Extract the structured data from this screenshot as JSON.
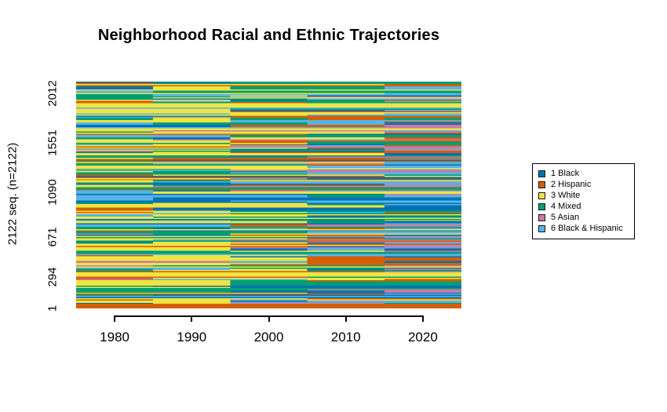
{
  "window": {
    "background_color": "#ffffff"
  },
  "chart_data": {
    "type": "heatmap",
    "subtype": "sequence-index-plot",
    "title": "Neighborhood Racial and Ethnic Trajectories",
    "xlabel": "",
    "ylabel": "2122 seq. (n=2122)",
    "n_sequences": 2122,
    "x_range": [
      1975,
      2025
    ],
    "x_ticks": [
      1980,
      1990,
      2000,
      2010,
      2020
    ],
    "y_ticks": [
      1,
      294,
      671,
      1090,
      1551,
      2012
    ],
    "grid": false,
    "plot_frame": false,
    "legend_position": "right",
    "period_years": [
      1975,
      1985,
      1995,
      2005,
      2015,
      2025
    ],
    "states": [
      {
        "id": 1,
        "label": "1 Black",
        "color": "#0072B2"
      },
      {
        "id": 2,
        "label": "2 Hispanic",
        "color": "#D55E00"
      },
      {
        "id": 3,
        "label": "3 White",
        "color": "#F0E442"
      },
      {
        "id": 4,
        "label": "4 Mixed",
        "color": "#009E73"
      },
      {
        "id": 5,
        "label": "5 Asian",
        "color": "#CC79A7"
      },
      {
        "id": 6,
        "label": "6 Black & Hispanic",
        "color": "#56B4E9"
      }
    ],
    "period_state_distributions": [
      {
        "period": "1975-1985",
        "probs": [
          0.15,
          0.09,
          0.46,
          0.15,
          0.03,
          0.12
        ]
      },
      {
        "period": "1985-1995",
        "probs": [
          0.15,
          0.12,
          0.37,
          0.17,
          0.05,
          0.14
        ]
      },
      {
        "period": "1995-2005",
        "probs": [
          0.17,
          0.16,
          0.22,
          0.2,
          0.1,
          0.15
        ]
      },
      {
        "period": "2005-2015",
        "probs": [
          0.17,
          0.18,
          0.11,
          0.22,
          0.15,
          0.17
        ]
      },
      {
        "period": "2015-2025",
        "probs": [
          0.16,
          0.18,
          0.07,
          0.22,
          0.18,
          0.19
        ]
      }
    ],
    "render": {
      "rows": 200,
      "seed": 7,
      "persistence": 0.55,
      "row_copy_prob": 0.18,
      "forced_bottom_rows": 4,
      "forced_bottom_state_index": 1
    }
  }
}
